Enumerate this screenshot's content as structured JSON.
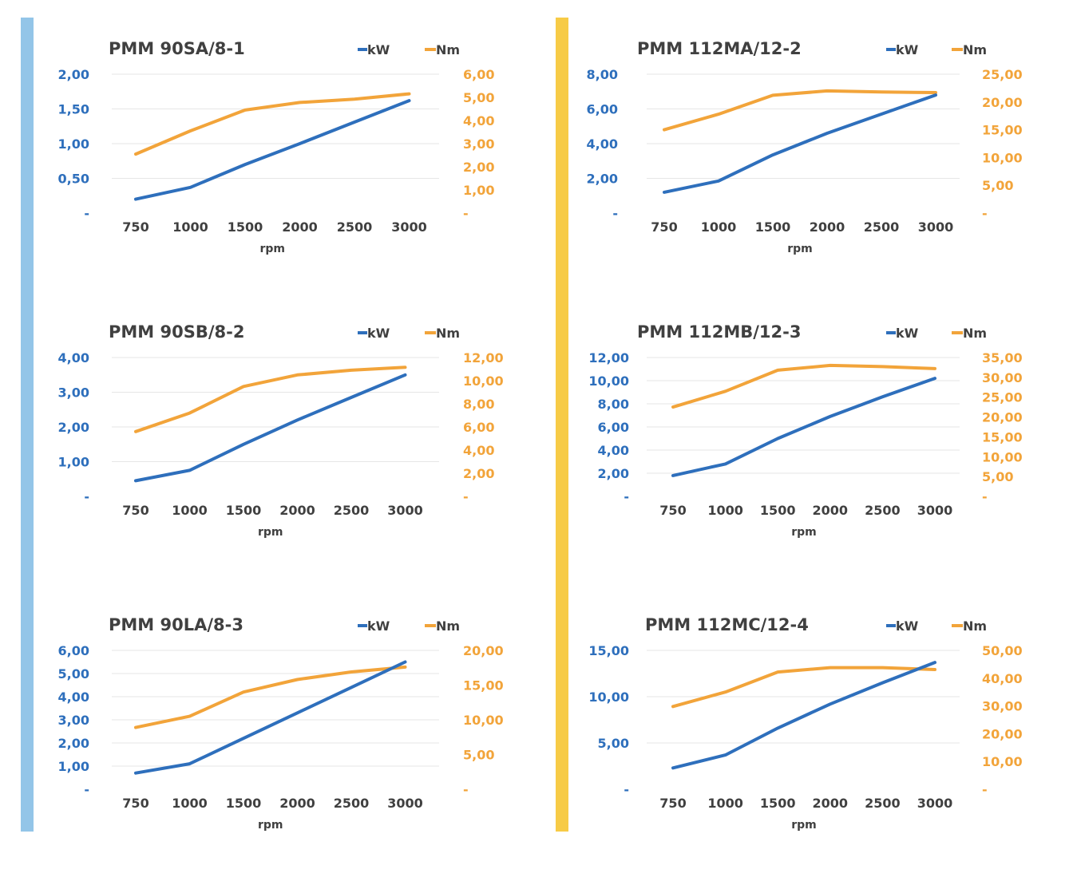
{
  "colors": {
    "kw": "#2E6FBC",
    "nm": "#F2A43A",
    "bar_left": "#93C5E8",
    "bar_right": "#F7CB46",
    "grid": "#E6E6E6",
    "text": "#404040"
  },
  "chart_data": [
    {
      "type": "line",
      "title": "PMM 90SA/8-1",
      "xlabel": "rpm",
      "categories": [
        "750",
        "1000",
        "1500",
        "2000",
        "2500",
        "3000"
      ],
      "series": [
        {
          "name": "kW",
          "axis": "left",
          "values": [
            0.2,
            0.37,
            0.7,
            1.0,
            1.31,
            1.62
          ]
        },
        {
          "name": "Nm",
          "axis": "right",
          "values": [
            2.55,
            3.55,
            4.45,
            4.78,
            4.92,
            5.15
          ]
        }
      ],
      "y_left": {
        "min": 0,
        "max": 2.0,
        "ticks": [
          "-",
          "0,50",
          "1,00",
          "1,50",
          "2,00"
        ]
      },
      "y_right": {
        "min": 0,
        "max": 6.0,
        "ticks": [
          "-",
          "1,00",
          "2,00",
          "3,00",
          "4,00",
          "5,00",
          "6,00"
        ]
      },
      "legend": [
        "kW",
        "Nm"
      ]
    },
    {
      "type": "line",
      "title": "PMM 90SB/8-2",
      "xlabel": "rpm",
      "categories": [
        "750",
        "1000",
        "1500",
        "2000",
        "2500",
        "3000"
      ],
      "series": [
        {
          "name": "kW",
          "axis": "left",
          "values": [
            0.45,
            0.75,
            1.5,
            2.2,
            2.85,
            3.5
          ]
        },
        {
          "name": "Nm",
          "axis": "right",
          "values": [
            5.6,
            7.2,
            9.5,
            10.5,
            10.9,
            11.15
          ]
        }
      ],
      "y_left": {
        "min": 0,
        "max": 4.0,
        "ticks": [
          "-",
          "1,00",
          "2,00",
          "3,00",
          "4,00"
        ]
      },
      "y_right": {
        "min": 0,
        "max": 12.0,
        "ticks": [
          "-",
          "2,00",
          "4,00",
          "6,00",
          "8,00",
          "10,00",
          "12,00"
        ]
      },
      "legend": [
        "kW",
        "Nm"
      ]
    },
    {
      "type": "line",
      "title": "PMM 90LA/8-3",
      "xlabel": "rpm",
      "categories": [
        "750",
        "1000",
        "1500",
        "2000",
        "2500",
        "3000"
      ],
      "series": [
        {
          "name": "kW",
          "axis": "left",
          "values": [
            0.7,
            1.1,
            2.2,
            3.3,
            4.4,
            5.5
          ]
        },
        {
          "name": "Nm",
          "axis": "right",
          "values": [
            8.9,
            10.5,
            14.0,
            15.8,
            16.9,
            17.6
          ]
        }
      ],
      "y_left": {
        "min": 0,
        "max": 6.0,
        "ticks": [
          "-",
          "1,00",
          "2,00",
          "3,00",
          "4,00",
          "5,00",
          "6,00"
        ]
      },
      "y_right": {
        "min": 0,
        "max": 20.0,
        "ticks": [
          "-",
          "5,00",
          "10,00",
          "15,00",
          "20,00"
        ]
      },
      "legend": [
        "kW",
        "Nm"
      ]
    },
    {
      "type": "line",
      "title": "PMM 112MA/12-2",
      "xlabel": "rpm",
      "categories": [
        "750",
        "1000",
        "1500",
        "2000",
        "2500",
        "3000"
      ],
      "series": [
        {
          "name": "kW",
          "axis": "left",
          "values": [
            1.2,
            1.85,
            3.35,
            4.6,
            5.7,
            6.8
          ]
        },
        {
          "name": "Nm",
          "axis": "right",
          "values": [
            15.0,
            17.8,
            21.2,
            22.0,
            21.8,
            21.7
          ]
        }
      ],
      "y_left": {
        "min": 0,
        "max": 8.0,
        "ticks": [
          "-",
          "2,00",
          "4,00",
          "6,00",
          "8,00"
        ]
      },
      "y_right": {
        "min": 0,
        "max": 25.0,
        "ticks": [
          "-",
          "5,00",
          "10,00",
          "15,00",
          "20,00",
          "25,00"
        ]
      },
      "legend": [
        "kW",
        "Nm"
      ]
    },
    {
      "type": "line",
      "title": "PMM 112MB/12-3",
      "xlabel": "rpm",
      "categories": [
        "750",
        "1000",
        "1500",
        "2000",
        "2500",
        "3000"
      ],
      "series": [
        {
          "name": "kW",
          "axis": "left",
          "values": [
            1.8,
            2.8,
            5.0,
            6.9,
            8.6,
            10.2
          ]
        },
        {
          "name": "Nm",
          "axis": "right",
          "values": [
            22.5,
            26.5,
            31.8,
            33.0,
            32.7,
            32.2
          ]
        }
      ],
      "y_left": {
        "min": 0,
        "max": 12.0,
        "ticks": [
          "-",
          "2,00",
          "4,00",
          "6,00",
          "8,00",
          "10,00",
          "12,00"
        ]
      },
      "y_right": {
        "min": 0,
        "max": 35.0,
        "ticks": [
          "-",
          "5,00",
          "10,00",
          "15,00",
          "20,00",
          "25,00",
          "30,00",
          "35,00"
        ]
      },
      "legend": [
        "kW",
        "Nm"
      ]
    },
    {
      "type": "line",
      "title": "PMM 112MC/12-4",
      "xlabel": "rpm",
      "categories": [
        "750",
        "1000",
        "1500",
        "2000",
        "2500",
        "3000"
      ],
      "series": [
        {
          "name": "kW",
          "axis": "left",
          "values": [
            2.3,
            3.7,
            6.6,
            9.2,
            11.5,
            13.7
          ]
        },
        {
          "name": "Nm",
          "axis": "right",
          "values": [
            29.8,
            35.0,
            42.2,
            43.8,
            43.8,
            43.1
          ]
        }
      ],
      "y_left": {
        "min": 0,
        "max": 15.0,
        "ticks": [
          "-",
          "5,00",
          "10,00",
          "15,00"
        ]
      },
      "y_right": {
        "min": 0,
        "max": 50.0,
        "ticks": [
          "-",
          "10,00",
          "20,00",
          "30,00",
          "40,00",
          "50,00"
        ]
      },
      "legend": [
        "kW",
        "Nm"
      ]
    }
  ]
}
